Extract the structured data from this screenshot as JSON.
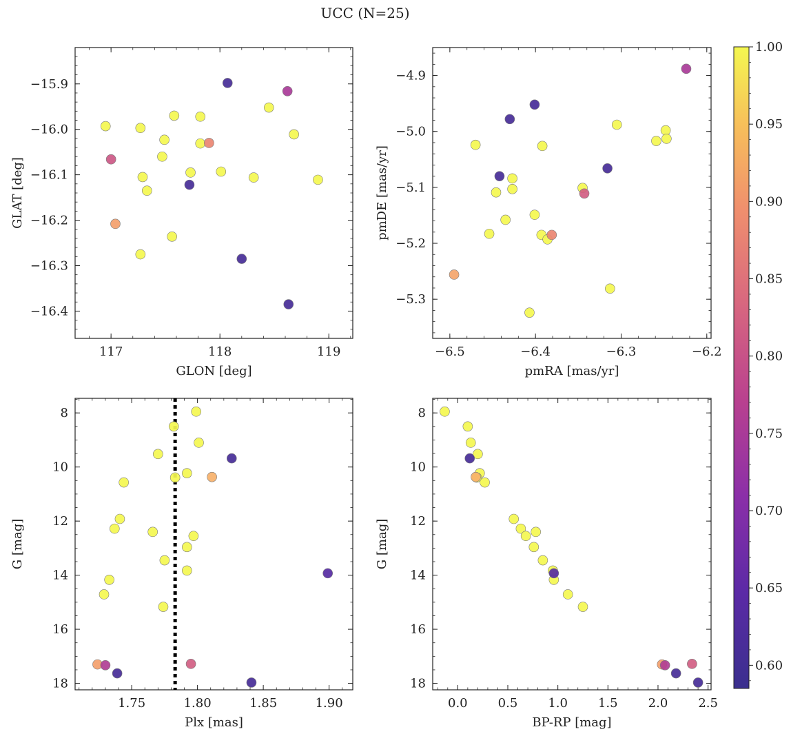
{
  "figure": {
    "title": "UCC (N=25)"
  },
  "colorbar": {
    "label_ticks": [
      "0.60",
      "0.65",
      "0.70",
      "0.75",
      "0.80",
      "0.85",
      "0.90",
      "0.95",
      "1.00"
    ],
    "tick_values": [
      0.6,
      0.65,
      0.7,
      0.75,
      0.8,
      0.85,
      0.9,
      0.95,
      1.0
    ],
    "range": [
      0.585,
      1.0
    ],
    "colormap": "plasma",
    "colors": {
      "c060": "#3c2f8f",
      "c070": "#8b2fa8",
      "c080": "#d8677f",
      "c090": "#f7b16a",
      "c100": "#f4f750"
    }
  },
  "chart_data": [
    {
      "type": "scatter",
      "name": "glon-glat",
      "xlabel": "GLON [deg]",
      "ylabel": "GLAT [deg]",
      "xlim": [
        116.67,
        119.22
      ],
      "ylim": [
        -16.46,
        -15.82
      ],
      "invert_y": false,
      "xticks": [
        117,
        118,
        119
      ],
      "xtick_labels": [
        "117",
        "118",
        "119"
      ],
      "yticks": [
        -15.9,
        -16.0,
        -16.1,
        -16.2,
        -16.3,
        -16.4
      ],
      "ytick_labels": [
        "−15.9",
        "−16.0",
        "−16.1",
        "−16.2",
        "−16.3",
        "−16.4"
      ],
      "points": [
        {
          "x": 116.95,
          "y": -15.993,
          "p": 1.0
        },
        {
          "x": 117.27,
          "y": -15.997,
          "p": 1.0
        },
        {
          "x": 117.58,
          "y": -15.97,
          "p": 1.0
        },
        {
          "x": 117.82,
          "y": -15.972,
          "p": 1.0
        },
        {
          "x": 118.45,
          "y": -15.952,
          "p": 1.0
        },
        {
          "x": 118.68,
          "y": -16.011,
          "p": 1.0
        },
        {
          "x": 117.49,
          "y": -16.023,
          "p": 1.0
        },
        {
          "x": 117.82,
          "y": -16.031,
          "p": 1.0
        },
        {
          "x": 117.47,
          "y": -16.06,
          "p": 1.0
        },
        {
          "x": 117.29,
          "y": -16.105,
          "p": 1.0
        },
        {
          "x": 117.33,
          "y": -16.135,
          "p": 1.0
        },
        {
          "x": 117.73,
          "y": -16.095,
          "p": 1.0
        },
        {
          "x": 118.01,
          "y": -16.093,
          "p": 1.0
        },
        {
          "x": 118.31,
          "y": -16.106,
          "p": 1.0
        },
        {
          "x": 118.9,
          "y": -16.111,
          "p": 1.0
        },
        {
          "x": 117.56,
          "y": -16.236,
          "p": 1.0
        },
        {
          "x": 117.27,
          "y": -16.275,
          "p": 1.0
        },
        {
          "x": 117.04,
          "y": -16.208,
          "p": 0.92
        },
        {
          "x": 117.9,
          "y": -16.03,
          "p": 0.88
        },
        {
          "x": 117.0,
          "y": -16.066,
          "p": 0.81
        },
        {
          "x": 118.62,
          "y": -15.916,
          "p": 0.75
        },
        {
          "x": 118.07,
          "y": -15.898,
          "p": 0.6
        },
        {
          "x": 117.72,
          "y": -16.122,
          "p": 0.6
        },
        {
          "x": 118.2,
          "y": -16.285,
          "p": 0.6
        },
        {
          "x": 118.63,
          "y": -16.385,
          "p": 0.6
        }
      ]
    },
    {
      "type": "scatter",
      "name": "pmra-pmde",
      "xlabel": "pmRA [mas/yr]",
      "ylabel": "pmDE [mas/yr]",
      "xlim": [
        -6.52,
        -6.195
      ],
      "ylim": [
        -5.37,
        -4.85
      ],
      "invert_y": false,
      "xticks": [
        -6.5,
        -6.4,
        -6.3,
        -6.2
      ],
      "xtick_labels": [
        "−6.5",
        "−6.4",
        "−6.3",
        "−6.2"
      ],
      "yticks": [
        -4.9,
        -5.0,
        -5.1,
        -5.2,
        -5.3
      ],
      "ytick_labels": [
        "−4.9",
        "−5.0",
        "−5.1",
        "−5.2",
        "−5.3"
      ],
      "points": [
        {
          "x": -6.47,
          "y": -5.024,
          "p": 1.0
        },
        {
          "x": -6.392,
          "y": -5.026,
          "p": 1.0
        },
        {
          "x": -6.305,
          "y": -4.988,
          "p": 1.0
        },
        {
          "x": -6.248,
          "y": -4.998,
          "p": 1.0
        },
        {
          "x": -6.259,
          "y": -5.017,
          "p": 1.0
        },
        {
          "x": -6.247,
          "y": -5.013,
          "p": 1.0
        },
        {
          "x": -6.427,
          "y": -5.084,
          "p": 1.0
        },
        {
          "x": -6.446,
          "y": -5.109,
          "p": 1.0
        },
        {
          "x": -6.427,
          "y": -5.103,
          "p": 1.0
        },
        {
          "x": -6.345,
          "y": -5.101,
          "p": 1.0
        },
        {
          "x": -6.435,
          "y": -5.158,
          "p": 1.0
        },
        {
          "x": -6.401,
          "y": -5.149,
          "p": 1.0
        },
        {
          "x": -6.454,
          "y": -5.183,
          "p": 1.0
        },
        {
          "x": -6.393,
          "y": -5.185,
          "p": 1.0
        },
        {
          "x": -6.386,
          "y": -5.193,
          "p": 1.0
        },
        {
          "x": -6.313,
          "y": -5.281,
          "p": 1.0
        },
        {
          "x": -6.407,
          "y": -5.324,
          "p": 1.0
        },
        {
          "x": -6.495,
          "y": -5.256,
          "p": 0.93
        },
        {
          "x": -6.381,
          "y": -5.185,
          "p": 0.88
        },
        {
          "x": -6.343,
          "y": -5.111,
          "p": 0.82
        },
        {
          "x": -6.224,
          "y": -4.888,
          "p": 0.75
        },
        {
          "x": -6.401,
          "y": -4.952,
          "p": 0.6
        },
        {
          "x": -6.43,
          "y": -4.978,
          "p": 0.6
        },
        {
          "x": -6.442,
          "y": -5.08,
          "p": 0.6
        },
        {
          "x": -6.316,
          "y": -5.066,
          "p": 0.6
        }
      ]
    },
    {
      "type": "scatter",
      "name": "plx-g",
      "xlabel": "Plx [mas]",
      "ylabel": "G [mag]",
      "xlim": [
        1.707,
        1.918
      ],
      "ylim": [
        7.46,
        18.24
      ],
      "invert_y": true,
      "xticks": [
        1.75,
        1.8,
        1.85,
        1.9
      ],
      "xtick_labels": [
        "1.75",
        "1.80",
        "1.85",
        "1.90"
      ],
      "yticks": [
        8,
        10,
        12,
        14,
        16,
        18
      ],
      "ytick_labels": [
        "8",
        "10",
        "12",
        "14",
        "16",
        "18"
      ],
      "vline": {
        "x": 1.783,
        "style": "dotted"
      },
      "points": [
        {
          "x": 1.799,
          "y": 7.95,
          "p": 1.0
        },
        {
          "x": 1.782,
          "y": 8.5,
          "p": 1.0
        },
        {
          "x": 1.801,
          "y": 9.1,
          "p": 1.0
        },
        {
          "x": 1.77,
          "y": 9.52,
          "p": 1.0
        },
        {
          "x": 1.792,
          "y": 10.23,
          "p": 1.0
        },
        {
          "x": 1.783,
          "y": 10.39,
          "p": 1.0
        },
        {
          "x": 1.744,
          "y": 10.57,
          "p": 1.0
        },
        {
          "x": 1.741,
          "y": 11.92,
          "p": 1.0
        },
        {
          "x": 1.737,
          "y": 12.28,
          "p": 1.0
        },
        {
          "x": 1.766,
          "y": 12.4,
          "p": 1.0
        },
        {
          "x": 1.797,
          "y": 12.55,
          "p": 1.0
        },
        {
          "x": 1.792,
          "y": 12.96,
          "p": 1.0
        },
        {
          "x": 1.775,
          "y": 13.45,
          "p": 1.0
        },
        {
          "x": 1.792,
          "y": 13.83,
          "p": 1.0
        },
        {
          "x": 1.733,
          "y": 14.17,
          "p": 1.0
        },
        {
          "x": 1.729,
          "y": 14.71,
          "p": 1.0
        },
        {
          "x": 1.774,
          "y": 15.17,
          "p": 1.0
        },
        {
          "x": 1.811,
          "y": 10.37,
          "p": 0.95
        },
        {
          "x": 1.724,
          "y": 17.3,
          "p": 0.92
        },
        {
          "x": 1.795,
          "y": 17.28,
          "p": 0.82
        },
        {
          "x": 1.73,
          "y": 17.33,
          "p": 0.76
        },
        {
          "x": 1.826,
          "y": 9.68,
          "p": 0.6
        },
        {
          "x": 1.899,
          "y": 13.93,
          "p": 0.62
        },
        {
          "x": 1.739,
          "y": 17.63,
          "p": 0.6
        },
        {
          "x": 1.841,
          "y": 17.97,
          "p": 0.6
        }
      ]
    },
    {
      "type": "scatter",
      "name": "bprp-g",
      "xlabel": "BP-RP [mag]",
      "ylabel": "G [mag]",
      "xlim": [
        -0.25,
        2.53
      ],
      "ylim": [
        7.46,
        18.24
      ],
      "invert_y": true,
      "xticks": [
        0.0,
        0.5,
        1.0,
        1.5,
        2.0,
        2.5
      ],
      "xtick_labels": [
        "0.0",
        "0.5",
        "1.0",
        "1.5",
        "2.0",
        "2.5"
      ],
      "yticks": [
        8,
        10,
        12,
        14,
        16,
        18
      ],
      "ytick_labels": [
        "8",
        "10",
        "12",
        "14",
        "16",
        "18"
      ],
      "points": [
        {
          "x": -0.13,
          "y": 7.95,
          "p": 1.0
        },
        {
          "x": 0.1,
          "y": 8.5,
          "p": 1.0
        },
        {
          "x": 0.13,
          "y": 9.1,
          "p": 1.0
        },
        {
          "x": 0.2,
          "y": 9.52,
          "p": 1.0
        },
        {
          "x": 0.22,
          "y": 10.23,
          "p": 1.0
        },
        {
          "x": 0.19,
          "y": 10.39,
          "p": 1.0
        },
        {
          "x": 0.27,
          "y": 10.57,
          "p": 1.0
        },
        {
          "x": 0.56,
          "y": 11.92,
          "p": 1.0
        },
        {
          "x": 0.63,
          "y": 12.28,
          "p": 1.0
        },
        {
          "x": 0.78,
          "y": 12.4,
          "p": 1.0
        },
        {
          "x": 0.68,
          "y": 12.55,
          "p": 1.0
        },
        {
          "x": 0.76,
          "y": 12.96,
          "p": 1.0
        },
        {
          "x": 0.85,
          "y": 13.45,
          "p": 1.0
        },
        {
          "x": 0.95,
          "y": 13.83,
          "p": 1.0
        },
        {
          "x": 0.96,
          "y": 14.17,
          "p": 1.0
        },
        {
          "x": 1.1,
          "y": 14.71,
          "p": 1.0
        },
        {
          "x": 1.25,
          "y": 15.17,
          "p": 1.0
        },
        {
          "x": 0.18,
          "y": 10.37,
          "p": 0.95
        },
        {
          "x": 2.04,
          "y": 17.3,
          "p": 0.92
        },
        {
          "x": 2.34,
          "y": 17.28,
          "p": 0.82
        },
        {
          "x": 2.07,
          "y": 17.33,
          "p": 0.76
        },
        {
          "x": 0.12,
          "y": 9.68,
          "p": 0.6
        },
        {
          "x": 0.96,
          "y": 13.93,
          "p": 0.62
        },
        {
          "x": 2.18,
          "y": 17.63,
          "p": 0.6
        },
        {
          "x": 2.4,
          "y": 17.97,
          "p": 0.6
        }
      ]
    }
  ]
}
